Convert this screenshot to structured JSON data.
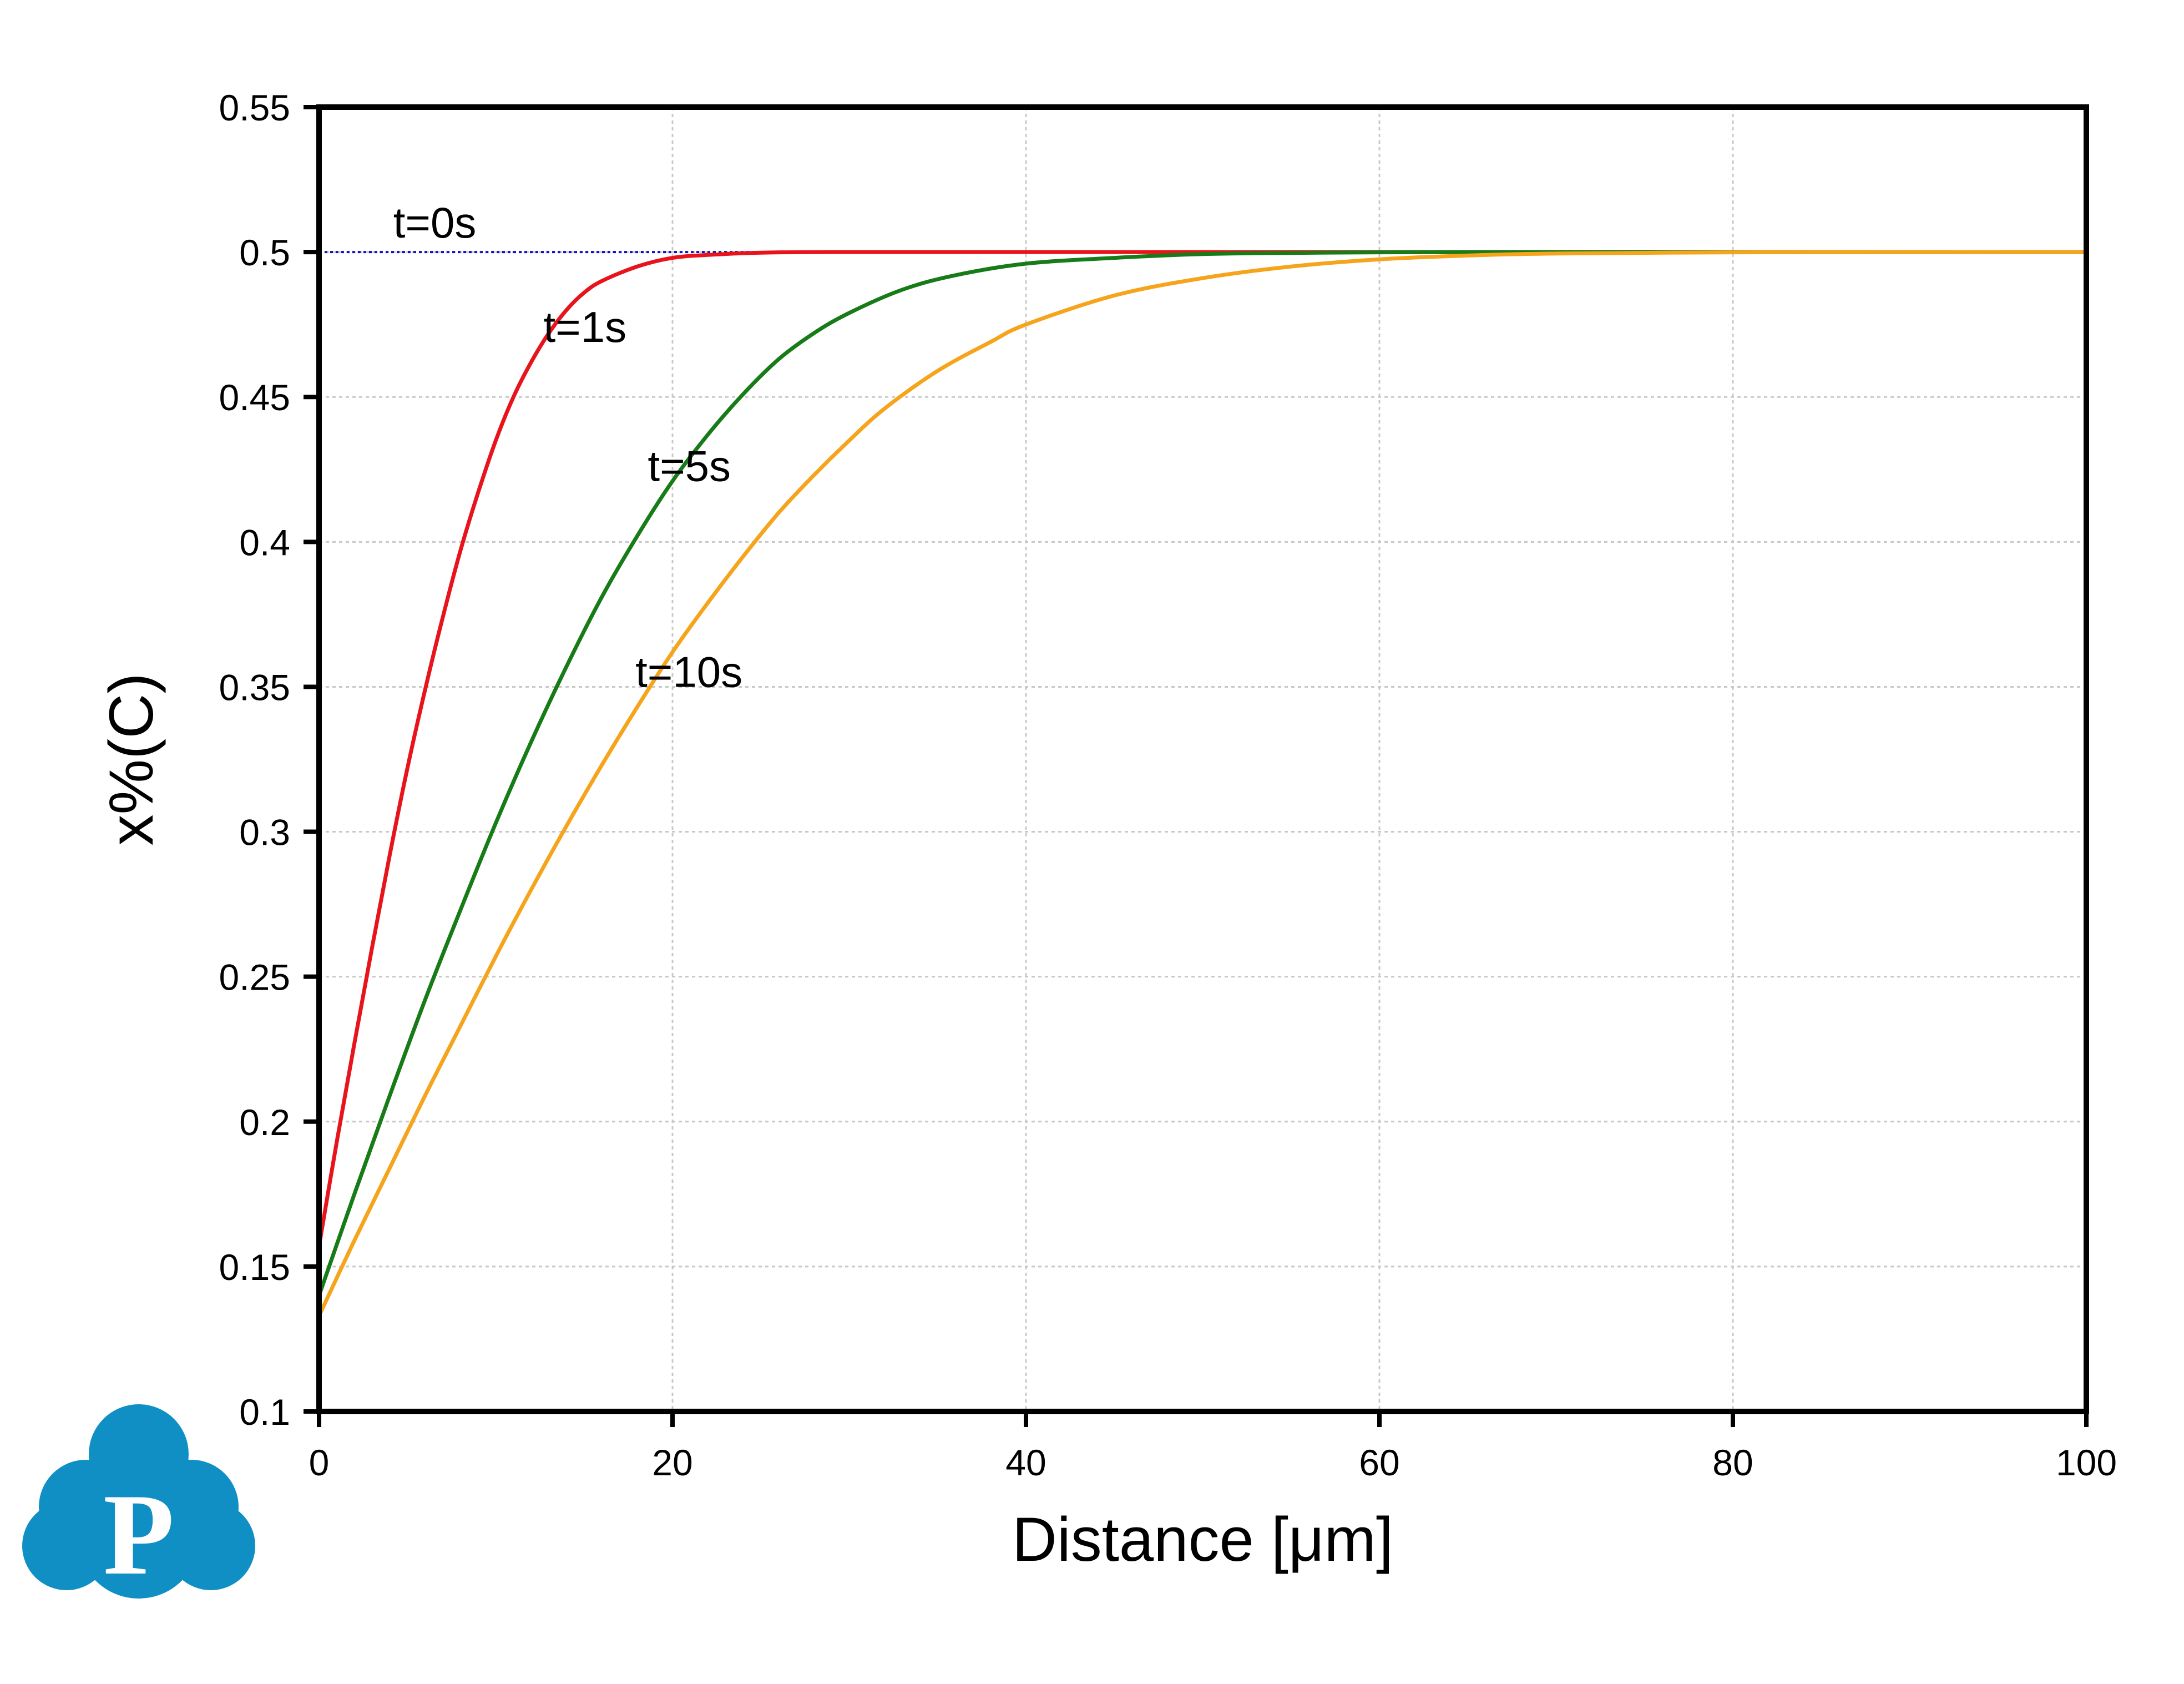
{
  "chart_data": {
    "type": "line",
    "xlabel": "Distance [μm]",
    "ylabel": "x%(C)",
    "xlim": [
      0,
      100
    ],
    "ylim": [
      0.1,
      0.55
    ],
    "x_ticks": [
      0,
      20,
      40,
      60,
      80,
      100
    ],
    "x_tick_labels": [
      "0",
      "20",
      "40",
      "60",
      "80",
      "100"
    ],
    "y_ticks": [
      0.1,
      0.15,
      0.2,
      0.25,
      0.3,
      0.35,
      0.4,
      0.45,
      0.5,
      0.55
    ],
    "y_tick_labels": [
      "0.1",
      "0.15",
      "0.2",
      "0.25",
      "0.3",
      "0.35",
      "0.4",
      "0.45",
      "0.5",
      "0.55"
    ],
    "grid": true,
    "legend": "none",
    "series": [
      {
        "name": "t=0s",
        "color": "#1010c8",
        "dashed": true,
        "x": [
          0,
          10,
          20,
          30,
          40,
          50,
          60,
          70,
          80,
          90,
          100
        ],
        "y": [
          0.5,
          0.5,
          0.5,
          0.5,
          0.5,
          0.5,
          0.5,
          0.5,
          0.5,
          0.5,
          0.5
        ]
      },
      {
        "name": "t=1s",
        "color": "#e8141c",
        "x": [
          0,
          1,
          2,
          3,
          4,
          5,
          6,
          7,
          8,
          9,
          10,
          11,
          12,
          13,
          14,
          15,
          16,
          18,
          20,
          22,
          25,
          30,
          40,
          60,
          80,
          100
        ],
        "y": [
          0.157,
          0.193,
          0.227,
          0.26,
          0.292,
          0.322,
          0.349,
          0.374,
          0.397,
          0.417,
          0.435,
          0.45,
          0.462,
          0.472,
          0.48,
          0.486,
          0.49,
          0.495,
          0.498,
          0.499,
          0.4998,
          0.5,
          0.5,
          0.5,
          0.5,
          0.5
        ]
      },
      {
        "name": "t=5s",
        "color": "#177b17",
        "x": [
          0,
          2,
          4,
          6,
          8,
          10,
          12,
          14,
          16,
          18,
          20,
          22,
          24,
          26,
          28,
          30,
          33,
          36,
          40,
          45,
          50,
          55,
          60,
          70,
          80,
          90,
          100
        ],
        "y": [
          0.14,
          0.175,
          0.209,
          0.242,
          0.273,
          0.303,
          0.331,
          0.357,
          0.381,
          0.402,
          0.421,
          0.437,
          0.451,
          0.463,
          0.472,
          0.479,
          0.487,
          0.492,
          0.496,
          0.498,
          0.4993,
          0.4997,
          0.4999,
          0.5,
          0.5,
          0.5,
          0.5
        ]
      },
      {
        "name": "t=10s",
        "color": "#f5a41b",
        "x": [
          0,
          2,
          4,
          6,
          8,
          10,
          12,
          14,
          16,
          18,
          20,
          22,
          24,
          26,
          28,
          30,
          32,
          35,
          38,
          40,
          45,
          50,
          55,
          60,
          65,
          70,
          80,
          90,
          100
        ],
        "y": [
          0.133,
          0.159,
          0.184,
          0.209,
          0.233,
          0.257,
          0.28,
          0.302,
          0.323,
          0.343,
          0.362,
          0.379,
          0.395,
          0.41,
          0.423,
          0.435,
          0.446,
          0.459,
          0.469,
          0.475,
          0.485,
          0.491,
          0.495,
          0.4975,
          0.4988,
          0.4995,
          0.4999,
          0.5,
          0.5
        ]
      }
    ],
    "annotations": [
      {
        "text": "t=0s",
        "x": 4.2,
        "y": 0.505
      },
      {
        "text": "t=1s",
        "x": 12.7,
        "y": 0.469
      },
      {
        "text": "t=5s",
        "x": 18.6,
        "y": 0.421
      },
      {
        "text": "t=10s",
        "x": 17.9,
        "y": 0.35
      }
    ]
  },
  "logo": {
    "letter": "P",
    "color": "#0f8fc4"
  }
}
